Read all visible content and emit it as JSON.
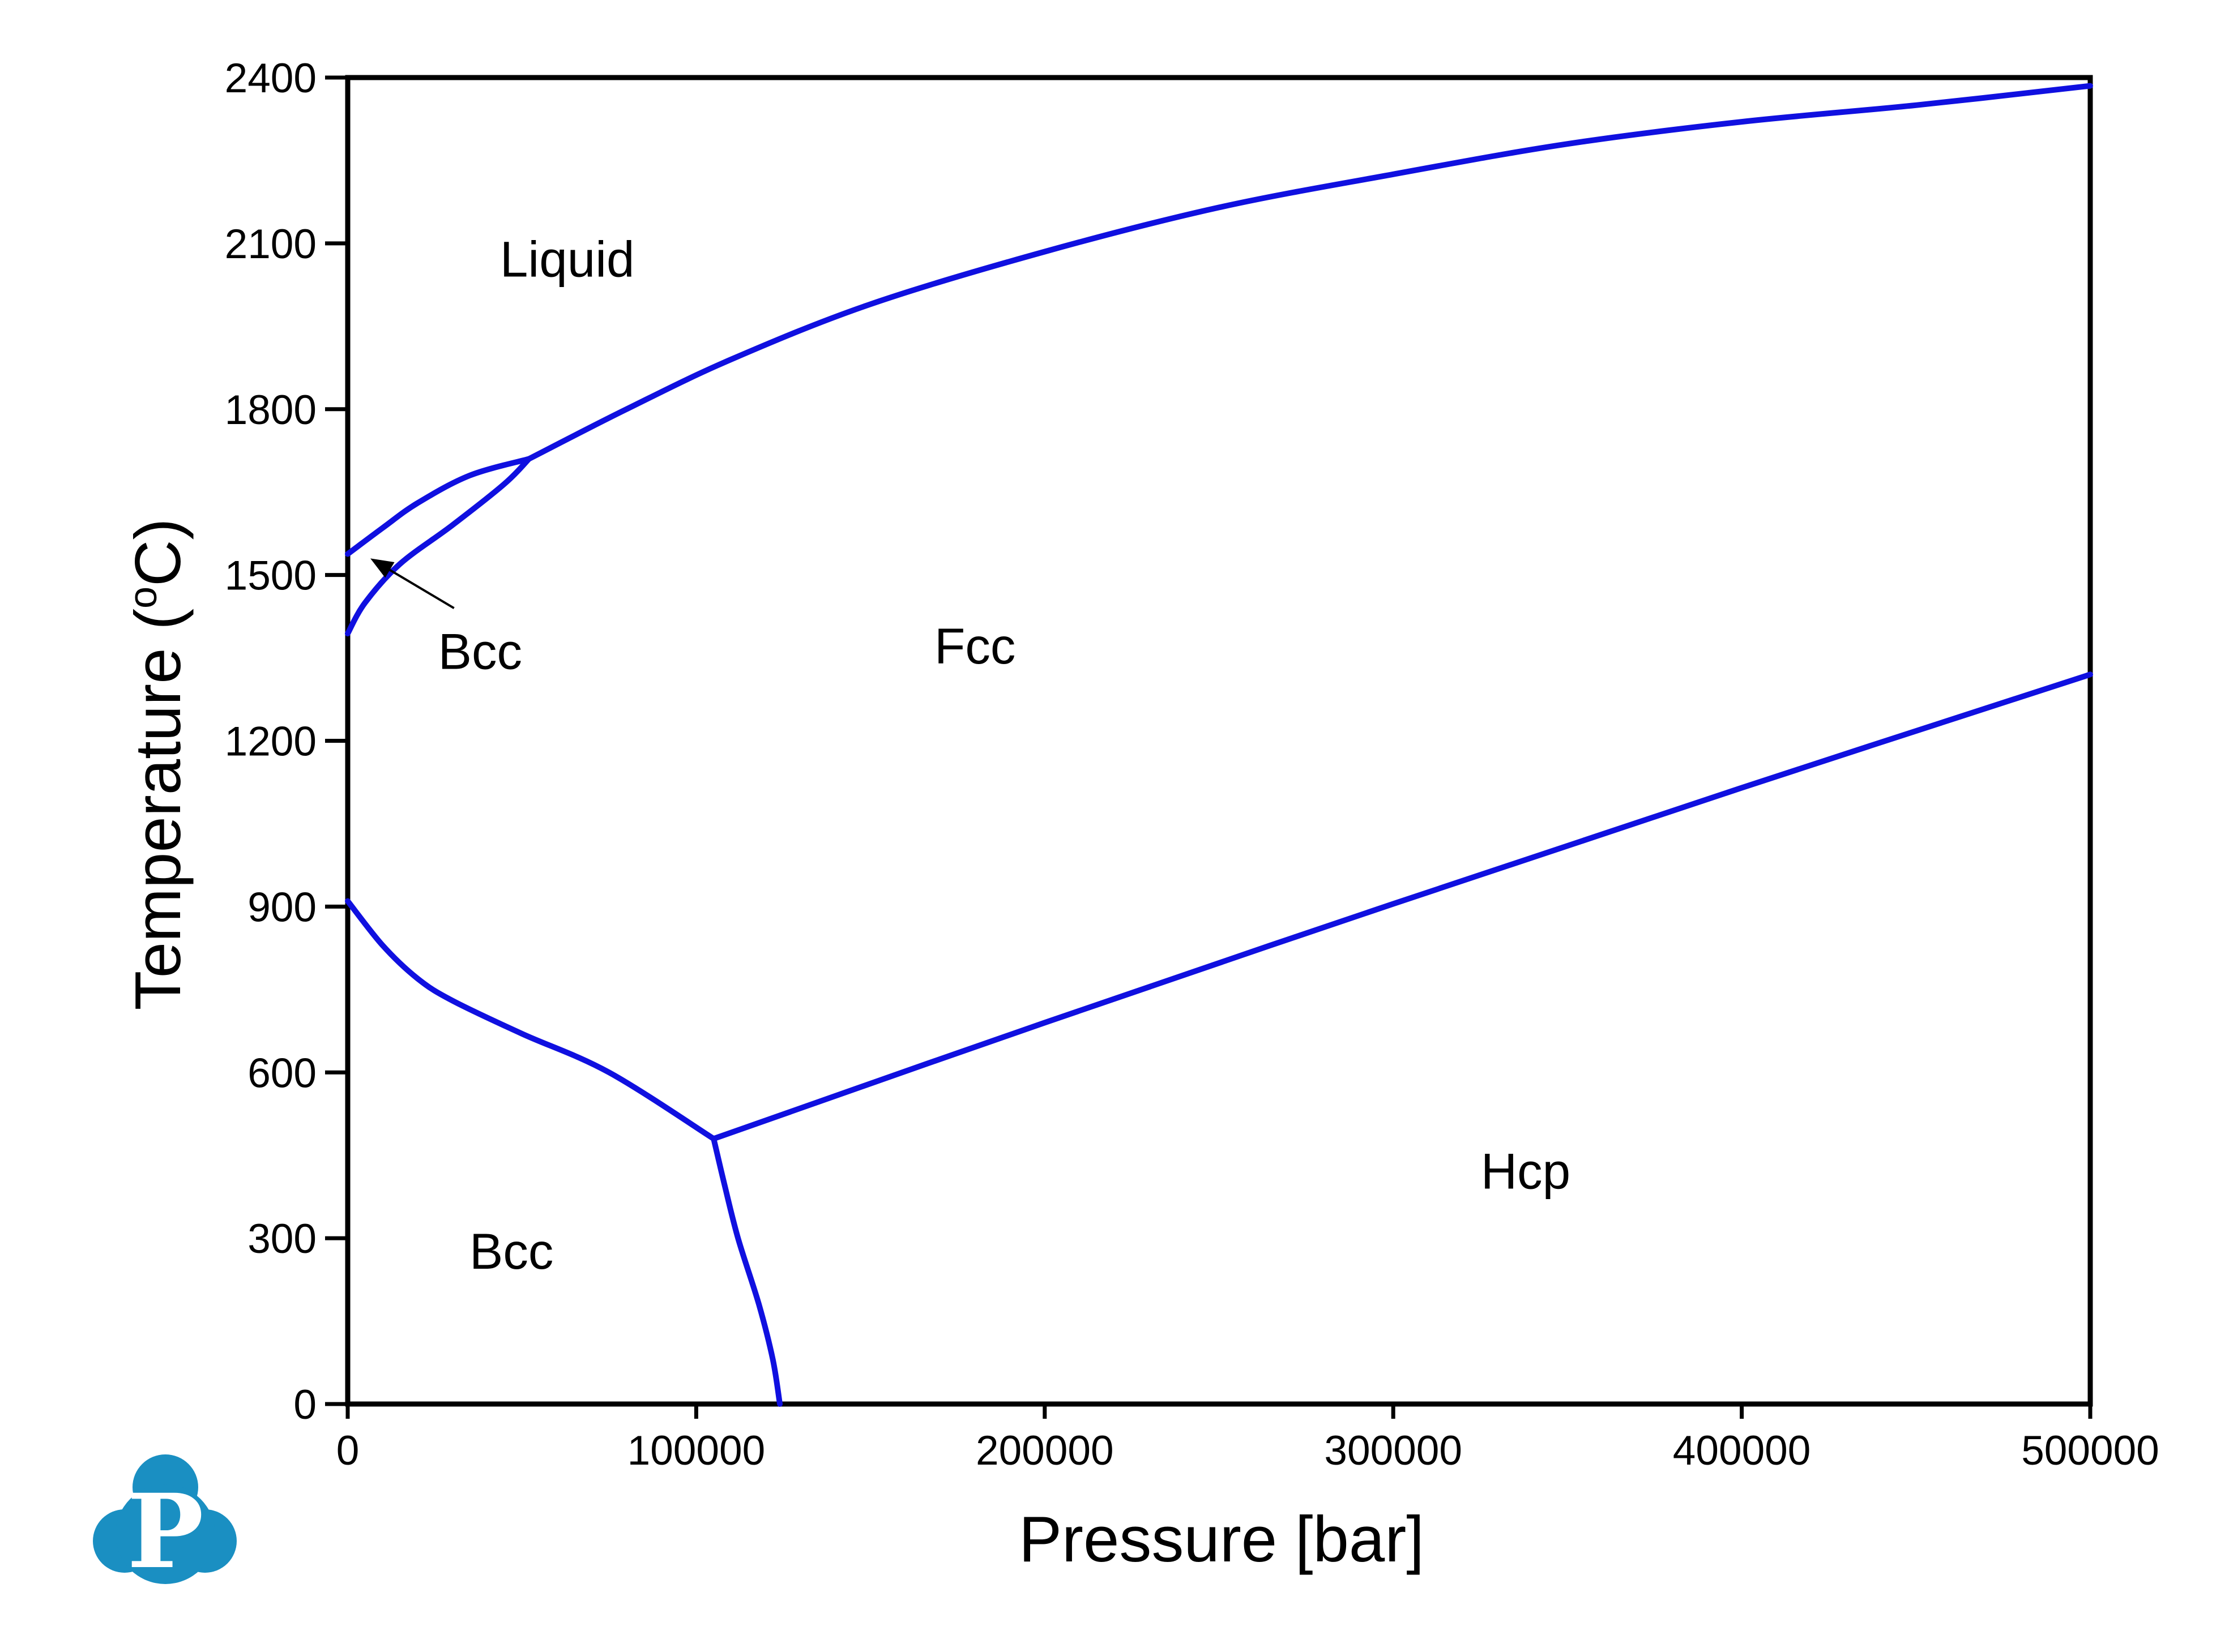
{
  "chart_data": {
    "type": "line",
    "title": "",
    "xlabel": "Pressure [bar]",
    "ylabel_main": "Temperature (",
    "ylabel_sup": "o",
    "ylabel_end": "C)",
    "xlim": [
      0,
      500000
    ],
    "ylim": [
      0,
      2400
    ],
    "xticks": [
      "0",
      "100000",
      "200000",
      "300000",
      "400000",
      "500000"
    ],
    "yticks": [
      "0",
      "300",
      "600",
      "900",
      "1200",
      "1500",
      "1800",
      "2100",
      "2400"
    ],
    "grid": false,
    "line_color": "#1010e0",
    "series": [
      {
        "x": [
          0,
          10000,
          20000,
          35000,
          52000
        ],
        "y": [
          1538,
          1585,
          1630,
          1680,
          1710
        ]
      },
      {
        "x": [
          52000,
          80000,
          110000,
          150000,
          200000,
          250000,
          300000,
          350000,
          400000,
          450000,
          500000
        ],
        "y": [
          1710,
          1800,
          1890,
          1990,
          2085,
          2165,
          2225,
          2280,
          2320,
          2350,
          2385
        ]
      },
      {
        "x": [
          0,
          5000,
          15000,
          30000,
          45000,
          52000
        ],
        "y": [
          1394,
          1450,
          1520,
          1590,
          1665,
          1710
        ]
      },
      {
        "x": [
          0,
          10000,
          20000,
          30000,
          50000,
          75000,
          105000
        ],
        "y": [
          910,
          830,
          770,
          730,
          670,
          600,
          480
        ]
      },
      {
        "x": [
          105000,
          200000,
          300000,
          400000,
          500000
        ],
        "y": [
          480,
          690,
          905,
          1115,
          1320
        ]
      },
      {
        "x": [
          105000,
          108000,
          112000,
          118000,
          122000,
          124000
        ],
        "y": [
          480,
          400,
          300,
          180,
          80,
          0
        ]
      }
    ],
    "annotations": [
      {
        "text": "Liquid",
        "x": 63000,
        "y": 2040
      },
      {
        "text": "Fcc",
        "x": 180000,
        "y": 1340
      },
      {
        "text": "Bcc",
        "x": 38000,
        "y": 1330
      },
      {
        "text": "Bcc",
        "x": 47000,
        "y": 245
      },
      {
        "text": "Hcp",
        "x": 338000,
        "y": 390
      }
    ],
    "arrow": {
      "from": {
        "x": 30500,
        "y": 1440
      },
      "to": {
        "x": 6500,
        "y": 1530
      }
    }
  },
  "logo": {
    "letter": "P",
    "color": "#1a8fc2"
  }
}
